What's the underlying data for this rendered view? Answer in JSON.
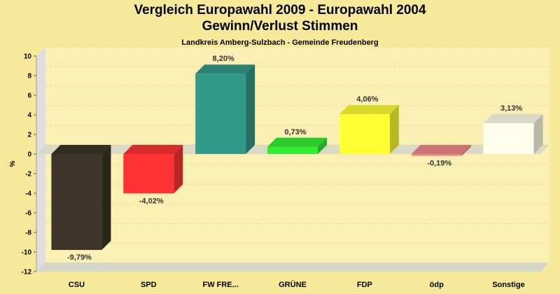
{
  "chart_data": {
    "type": "bar",
    "title": [
      "Vergleich Europawahl 2009 - Europawahl 2004",
      "Gewinn/Verlust Stimmen"
    ],
    "subtitle": "Landkreis Amberg-Sulzbach - Gemeinde Freudenberg",
    "ylabel": "%",
    "ylim": [
      -12,
      10
    ],
    "yticks": [
      10,
      8,
      6,
      4,
      2,
      0,
      -2,
      -4,
      -6,
      -8,
      -10,
      -12
    ],
    "grid": true,
    "categories": [
      "CSU",
      "SPD",
      "FW FRE...",
      "GRÜNE",
      "FDP",
      "ödp",
      "Sonstige"
    ],
    "values": [
      -9.79,
      -4.02,
      8.2,
      0.73,
      4.06,
      -0.19,
      3.13
    ],
    "data_labels": [
      "-9,79%",
      "-4,02%",
      "8,20%",
      "0,73%",
      "4,06%",
      "-0,19%",
      "3,13%"
    ],
    "colors": [
      "#3d3628",
      "#ff3333",
      "#339988",
      "#33ee33",
      "#ffff33",
      "#ee8888",
      "#ffffee"
    ]
  }
}
